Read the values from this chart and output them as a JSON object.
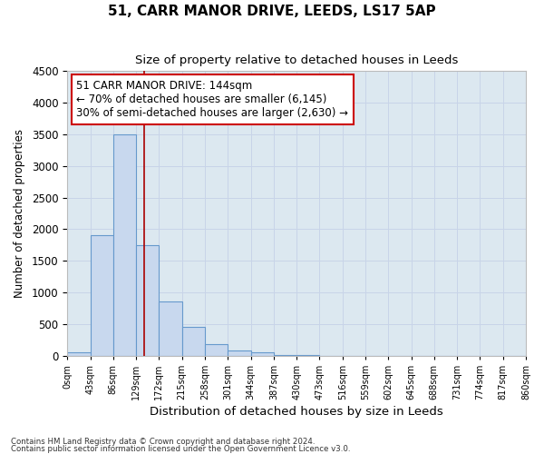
{
  "title1": "51, CARR MANOR DRIVE, LEEDS, LS17 5AP",
  "title2": "Size of property relative to detached houses in Leeds",
  "xlabel": "Distribution of detached houses by size in Leeds",
  "ylabel": "Number of detached properties",
  "bin_edges": [
    0,
    43,
    86,
    129,
    172,
    215,
    258,
    301,
    344,
    387,
    430,
    473,
    516,
    559,
    602,
    645,
    688,
    731,
    774,
    817,
    860
  ],
  "bar_heights": [
    50,
    1900,
    3500,
    1750,
    850,
    450,
    175,
    80,
    50,
    15,
    5,
    2,
    1,
    0,
    0,
    0,
    0,
    0,
    0,
    0
  ],
  "bar_color": "#c8d8ee",
  "bar_edgecolor": "#6699cc",
  "property_size": 144,
  "vline_color": "#aa0000",
  "annotation_line1": "51 CARR MANOR DRIVE: 144sqm",
  "annotation_line2": "← 70% of detached houses are smaller (6,145)",
  "annotation_line3": "30% of semi-detached houses are larger (2,630) →",
  "annotation_box_facecolor": "#ffffff",
  "annotation_box_edgecolor": "#cc0000",
  "ylim": [
    0,
    4500
  ],
  "yticks": [
    0,
    500,
    1000,
    1500,
    2000,
    2500,
    3000,
    3500,
    4000,
    4500
  ],
  "footnote1": "Contains HM Land Registry data © Crown copyright and database right 2024.",
  "footnote2": "Contains public sector information licensed under the Open Government Licence v3.0.",
  "grid_color": "#c8d4e8",
  "plot_bg_color": "#dce8f0",
  "fig_bg_color": "#ffffff"
}
